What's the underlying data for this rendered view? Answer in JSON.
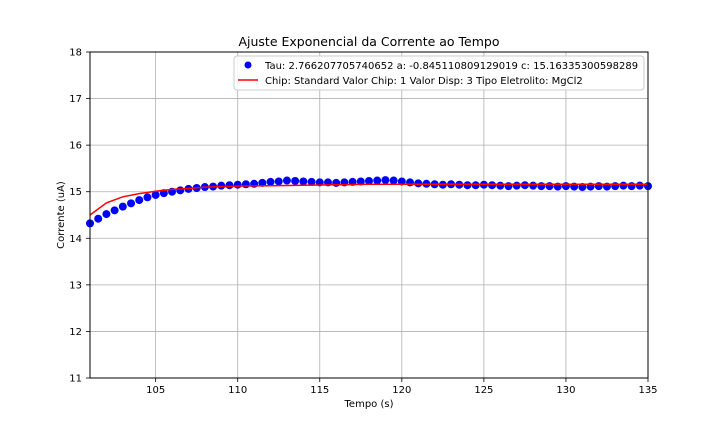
{
  "chart_data": {
    "type": "scatter",
    "title": "Ajuste Exponencial da Corrente ao Tempo",
    "xlabel": "Tempo (s)",
    "ylabel": "Corrente (uA)",
    "xlim": [
      101,
      135
    ],
    "ylim": [
      11,
      18
    ],
    "x_ticks": [
      105,
      110,
      115,
      120,
      125,
      130,
      135
    ],
    "y_ticks": [
      11,
      12,
      13,
      14,
      15,
      16,
      17,
      18
    ],
    "grid": true,
    "legend_position": "top-right",
    "series": [
      {
        "name": "Tau: 2.766207705740652 a: -0.845110809129019 c: 15.16335300598289",
        "kind": "scatter",
        "color": "#0000ff",
        "x": [
          101,
          101.5,
          102,
          102.5,
          103,
          103.5,
          104,
          104.5,
          105,
          105.5,
          106,
          106.5,
          107,
          107.5,
          108,
          108.5,
          109,
          109.5,
          110,
          110.5,
          111,
          111.5,
          112,
          112.5,
          113,
          113.5,
          114,
          114.5,
          115,
          115.5,
          116,
          116.5,
          117,
          117.5,
          118,
          118.5,
          119,
          119.5,
          120,
          120.5,
          121,
          121.5,
          122,
          122.5,
          123,
          123.5,
          124,
          124.5,
          125,
          125.5,
          126,
          126.5,
          127,
          127.5,
          128,
          128.5,
          129,
          129.5,
          130,
          130.5,
          131,
          131.5,
          132,
          132.5,
          133,
          133.5,
          134,
          134.5,
          135
        ],
        "y": [
          14.32,
          14.42,
          14.52,
          14.6,
          14.68,
          14.75,
          14.82,
          14.88,
          14.93,
          14.97,
          15.0,
          15.03,
          15.06,
          15.08,
          15.1,
          15.11,
          15.13,
          15.14,
          15.15,
          15.16,
          15.17,
          15.19,
          15.21,
          15.22,
          15.24,
          15.23,
          15.22,
          15.21,
          15.2,
          15.2,
          15.19,
          15.2,
          15.21,
          15.22,
          15.23,
          15.24,
          15.25,
          15.24,
          15.22,
          15.2,
          15.18,
          15.17,
          15.16,
          15.15,
          15.16,
          15.15,
          15.14,
          15.14,
          15.15,
          15.14,
          15.13,
          15.12,
          15.13,
          15.14,
          15.13,
          15.12,
          15.12,
          15.11,
          15.12,
          15.11,
          15.1,
          15.11,
          15.12,
          15.11,
          15.12,
          15.13,
          15.12,
          15.13,
          15.12
        ]
      },
      {
        "name": "Chip: Standard Valor Chip: 1 Valor Disp: 3 Tipo Eletrolito: MgCl2",
        "kind": "line",
        "color": "#ff0000",
        "x": [
          101,
          102,
          103,
          104,
          105,
          106,
          107,
          108,
          109,
          110,
          112,
          114,
          116,
          118,
          120,
          122,
          124,
          126,
          128,
          130,
          132,
          134,
          135
        ],
        "y": [
          14.5,
          14.76,
          14.89,
          14.96,
          15.01,
          15.05,
          15.07,
          15.1,
          15.11,
          15.12,
          15.13,
          15.14,
          15.15,
          15.16,
          15.16,
          15.16,
          15.16,
          15.16,
          15.16,
          15.16,
          15.16,
          15.16,
          15.16
        ]
      }
    ]
  }
}
